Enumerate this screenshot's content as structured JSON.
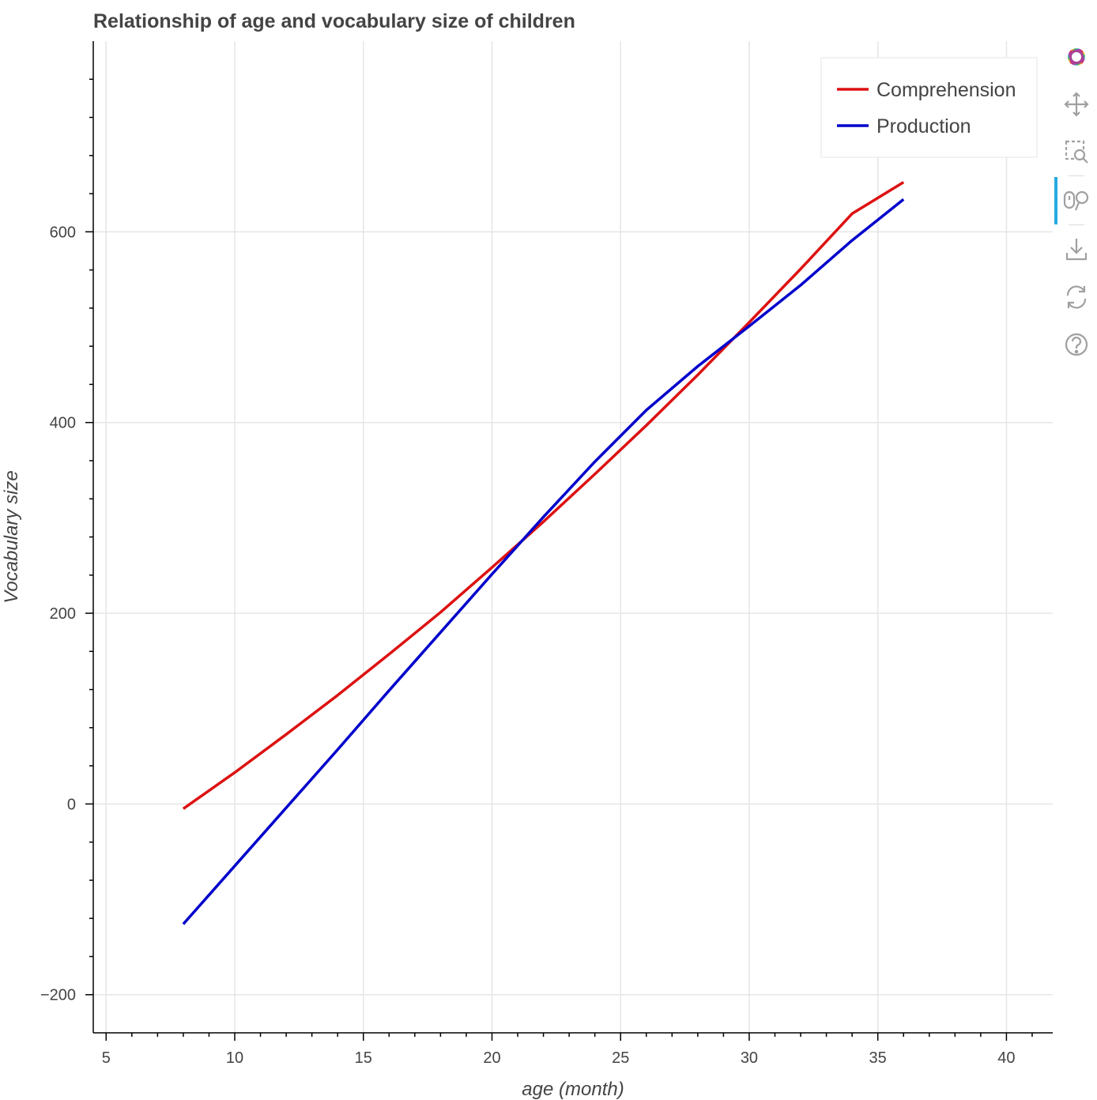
{
  "title": "Relationship of age and vocabulary size of children",
  "colors": {
    "comprehension": "#dd1111",
    "production": "#0000cc",
    "grid": "#e5e5e5",
    "axis": "#000000",
    "text": "#444444",
    "toolbar_active": "#26aae1"
  },
  "toolbar": {
    "tools": [
      {
        "name": "bokeh-logo",
        "icon": "bokeh-logo-icon"
      },
      {
        "name": "pan",
        "icon": "pan-icon"
      },
      {
        "name": "box-zoom",
        "icon": "box-zoom-icon"
      },
      {
        "name": "wheel-zoom",
        "icon": "wheel-zoom-icon",
        "active": true
      },
      {
        "name": "save",
        "icon": "save-icon"
      },
      {
        "name": "reset",
        "icon": "reset-icon"
      },
      {
        "name": "help",
        "icon": "help-icon"
      }
    ]
  },
  "chart_data": {
    "type": "line",
    "title": "Relationship of age and vocabulary size of children",
    "xlabel": "age (month)",
    "ylabel": "Vocabulary size",
    "xlim": [
      4.5,
      41.8
    ],
    "ylim": [
      -240,
      800
    ],
    "xticks": [
      5,
      10,
      15,
      20,
      25,
      30,
      35,
      40
    ],
    "yticks": [
      -200,
      0,
      200,
      400,
      600
    ],
    "grid": true,
    "legend_position": "top-right",
    "series": [
      {
        "name": "Comprehension",
        "color": "#dd1111",
        "x": [
          8,
          10,
          12,
          14,
          16,
          18,
          20,
          22,
          24,
          26,
          28,
          30,
          32,
          34,
          36
        ],
        "y": [
          -5,
          33,
          73,
          114,
          157,
          201,
          248,
          296,
          346,
          397,
          450,
          505,
          561,
          619,
          652
        ]
      },
      {
        "name": "Production",
        "color": "#0000cc",
        "x": [
          8,
          10,
          12,
          14,
          16,
          18,
          20,
          22,
          24,
          26,
          28,
          30,
          32,
          34,
          36
        ],
        "y": [
          -126,
          -65,
          -4,
          57,
          119,
          180,
          241,
          301,
          359,
          413,
          459,
          501,
          544,
          591,
          634
        ]
      }
    ]
  }
}
